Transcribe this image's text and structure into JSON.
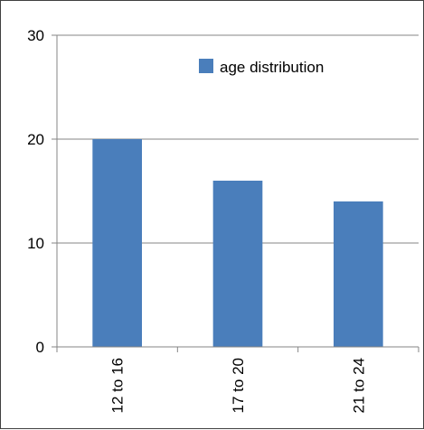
{
  "chart_data": {
    "type": "bar",
    "categories": [
      "12 to 16",
      "17 to 20",
      "21 to 24"
    ],
    "series": [
      {
        "name": "age distribution",
        "values": [
          20,
          16,
          14
        ]
      }
    ],
    "ylim": [
      0,
      30
    ],
    "y_ticks": [
      0,
      10,
      20,
      30
    ],
    "grid": true,
    "legend_position": "top-right",
    "bar_color": "#4a7ebb"
  }
}
